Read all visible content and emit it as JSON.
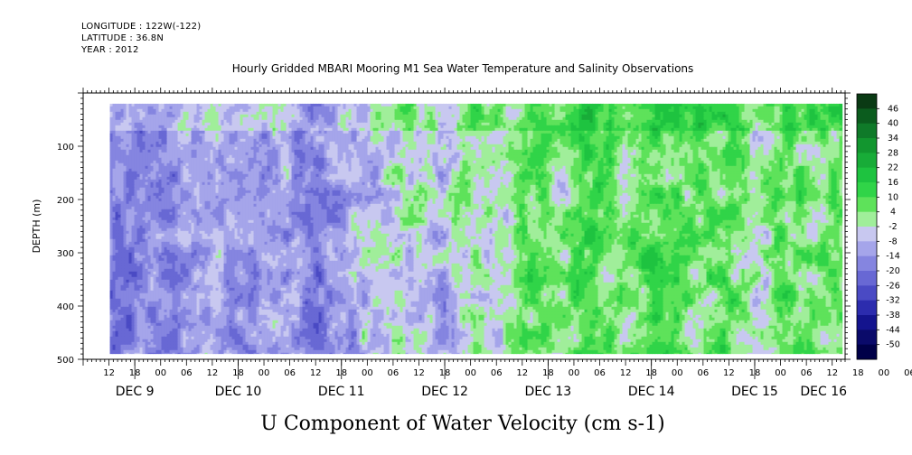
{
  "header": {
    "longitude": "LONGITUDE : 122W(-122)",
    "latitude": "LATITUDE : 36.8N",
    "year": "YEAR : 2012"
  },
  "chart_data": {
    "type": "heatmap",
    "title": "Hourly Gridded MBARI Mooring M1 Sea Water Temperature and Salinity Observations",
    "xlabel": "U Component of Water Velocity (cm s-1)",
    "ylabel": "DEPTH (m)",
    "xrange_hours": [
      0,
      177
    ],
    "ylim": [
      500,
      0
    ],
    "y_ticks": [
      100,
      200,
      300,
      400,
      500
    ],
    "x_hour_ticks": [
      "12",
      "18",
      "00",
      "06",
      "12",
      "18",
      "00",
      "06",
      "12",
      "18",
      "00",
      "06",
      "12",
      "18",
      "00",
      "06",
      "12",
      "18",
      "00",
      "06",
      "12",
      "18",
      "00",
      "06",
      "12",
      "18",
      "00",
      "06",
      "12",
      "18",
      "00",
      "06"
    ],
    "x_day_labels": [
      "DEC  9",
      "DEC 10",
      "DEC 11",
      "DEC 12",
      "DEC 13",
      "DEC 14",
      "DEC 15",
      "DEC 16"
    ],
    "data_extent": {
      "time_hours": [
        6.2,
        176.4
      ],
      "depth_m": [
        20,
        490
      ]
    },
    "colorbar": {
      "labels": [
        "46",
        "40",
        "34",
        "28",
        "22",
        "16",
        "10",
        "4",
        "-2",
        "-8",
        "-14",
        "-20",
        "-26",
        "-32",
        "-38",
        "-44",
        "-50"
      ],
      "colors": [
        "#0a3a14",
        "#0b5c1e",
        "#0f7a29",
        "#12962f",
        "#18ac38",
        "#1ec340",
        "#30d448",
        "#5ee25a",
        "#a0ee9a",
        "#c8c8f0",
        "#a5a5ea",
        "#8585e0",
        "#6868d4",
        "#4a4ac4",
        "#2c2cae",
        "#14148e",
        "#0a0a6a",
        "#000048"
      ],
      "levels_min": -50,
      "levels_max": 52
    },
    "grid": false
  }
}
